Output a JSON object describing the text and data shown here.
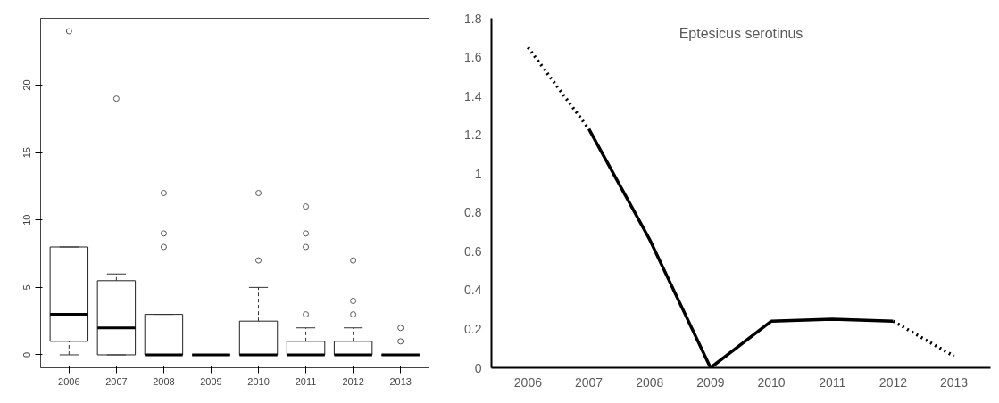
{
  "chart_data": [
    {
      "type": "box",
      "categories": [
        "2006",
        "2007",
        "2008",
        "2009",
        "2010",
        "2011",
        "2012",
        "2013"
      ],
      "ylim": [
        -0.96,
        24.96
      ],
      "yticks": [
        0,
        5,
        10,
        15,
        20
      ],
      "grid": false,
      "boxes": [
        {
          "low": 0,
          "q1": 1,
          "median": 3,
          "q3": 8,
          "high": 8,
          "outliers": [
            24
          ]
        },
        {
          "low": 0,
          "q1": 0,
          "median": 2,
          "q3": 5.5,
          "high": 6,
          "outliers": [
            19
          ]
        },
        {
          "low": 0,
          "q1": 0,
          "median": 0,
          "q3": 3,
          "high": 3,
          "outliers": [
            12,
            9,
            8
          ]
        },
        {
          "low": 0,
          "q1": 0,
          "median": 0,
          "q3": 0,
          "high": 0
        },
        {
          "low": 0,
          "q1": 0,
          "median": 0,
          "q3": 2.5,
          "high": 5,
          "outliers": [
            12,
            7
          ]
        },
        {
          "low": 0,
          "q1": 0,
          "median": 0,
          "q3": 1,
          "high": 2,
          "outliers": [
            11,
            9,
            8,
            3
          ]
        },
        {
          "low": 0,
          "q1": 0,
          "median": 0,
          "q3": 1,
          "high": 2,
          "outliers": [
            7,
            4,
            3
          ]
        },
        {
          "low": 0,
          "q1": 0,
          "median": 0,
          "q3": 0,
          "high": 0,
          "outliers": [
            2,
            1
          ]
        }
      ]
    },
    {
      "type": "line",
      "title": "Eptesicus serotinus",
      "categories": [
        "2006",
        "2007",
        "2008",
        "2009",
        "2010",
        "2011",
        "2012",
        "2013"
      ],
      "ylim": [
        0,
        1.8
      ],
      "yticks": [
        0,
        0.2,
        0.4,
        0.6,
        0.8,
        1,
        1.2,
        1.4,
        1.6,
        1.8
      ],
      "grid": false,
      "series": [
        {
          "color": "#000000",
          "line_style": "solid",
          "values": [
            null,
            1.23,
            0.66,
            0,
            0.24,
            0.25,
            0.24,
            null
          ]
        },
        {
          "color": "#000000",
          "line_style": "dotted",
          "values": [
            1.65,
            1.23,
            null,
            null,
            null,
            null,
            0.24,
            0.06
          ]
        }
      ]
    }
  ]
}
